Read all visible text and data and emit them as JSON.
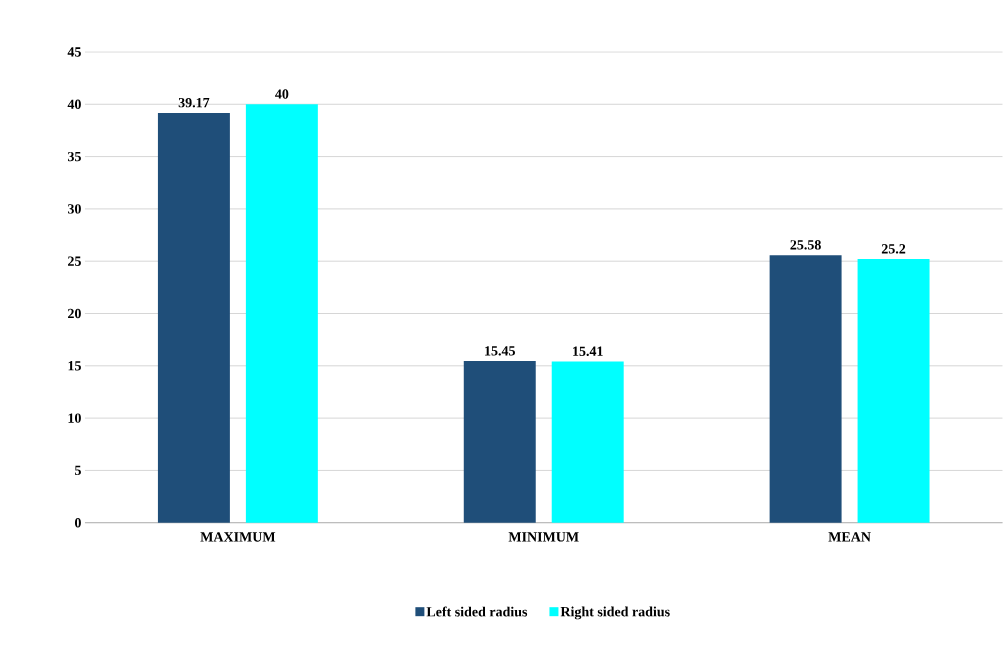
{
  "chart_data": {
    "type": "bar",
    "categories": [
      "MAXIMUM",
      "MINIMUM",
      "MEAN"
    ],
    "series": [
      {
        "name": "Left sided radius",
        "color": "#1f4e79",
        "values": [
          39.17,
          15.45,
          25.58
        ],
        "value_labels": [
          "39.17",
          "15.45",
          "25.58"
        ]
      },
      {
        "name": "Right sided radius",
        "color": "#00ffff",
        "values": [
          40,
          15.41,
          25.2
        ],
        "value_labels": [
          "40",
          "15.41",
          "25.2"
        ]
      }
    ],
    "ylim": [
      0,
      45
    ],
    "yticks": [
      0,
      5,
      10,
      15,
      20,
      25,
      30,
      35,
      40,
      45
    ],
    "grid": "y",
    "legend": "bottom"
  }
}
